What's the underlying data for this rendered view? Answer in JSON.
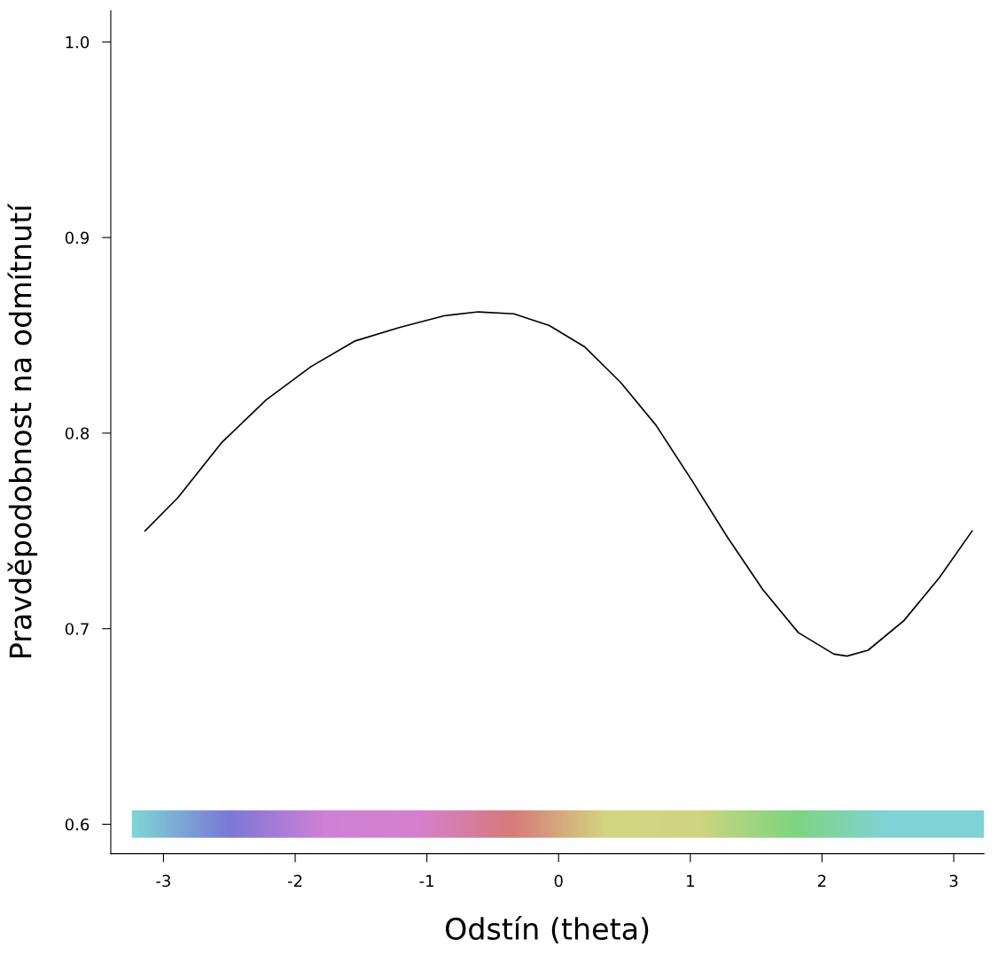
{
  "chart_data": {
    "type": "line",
    "xlabel": "Odstín (theta)",
    "ylabel": "Pravděpodobnost na odmítnutí",
    "x": [
      -3.14,
      -2.89,
      -2.56,
      -2.22,
      -1.88,
      -1.55,
      -1.21,
      -0.87,
      -0.61,
      -0.34,
      -0.07,
      0.2,
      0.47,
      0.74,
      1.01,
      1.28,
      1.55,
      1.82,
      2.09,
      2.19,
      2.35,
      2.62,
      2.89,
      3.14
    ],
    "series": [
      {
        "color": "#000000",
        "values": [
          0.75,
          0.767,
          0.795,
          0.817,
          0.834,
          0.847,
          0.854,
          0.86,
          0.862,
          0.861,
          0.855,
          0.844,
          0.826,
          0.804,
          0.776,
          0.747,
          0.72,
          0.698,
          0.687,
          0.686,
          0.689,
          0.704,
          0.726,
          0.75
        ]
      }
    ],
    "xlim": [
      -3.4,
      3.23
    ],
    "ylim": [
      0.585,
      1.016
    ],
    "xticks": [
      -3,
      -2,
      -1,
      0,
      1,
      2,
      3
    ],
    "yticks": [
      0.6,
      0.7,
      0.8,
      0.9,
      {
        "value": 1,
        "label": "1.0"
      }
    ],
    "grid": false,
    "legend": false,
    "marker": "none",
    "line_style": "solid"
  }
}
